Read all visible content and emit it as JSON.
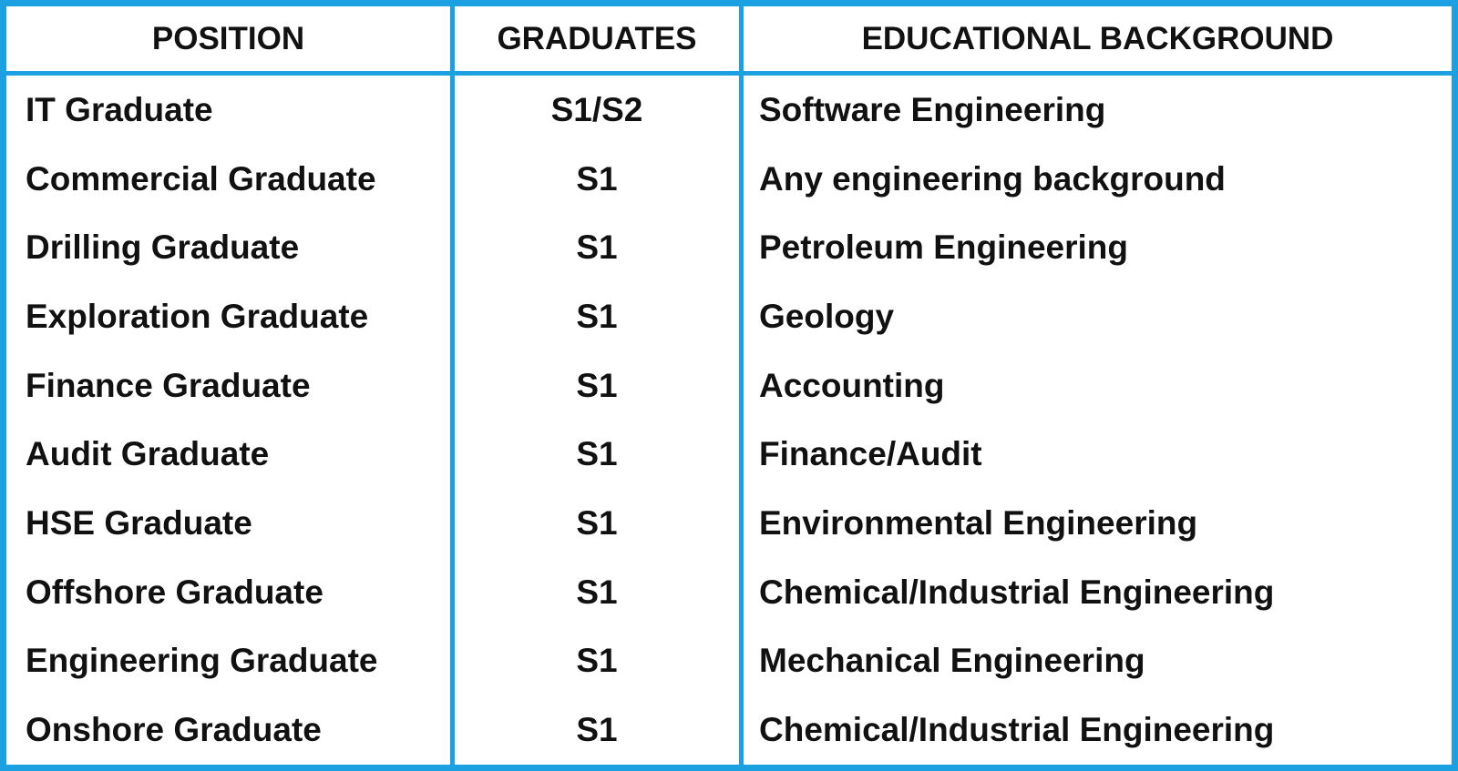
{
  "table": {
    "columns": [
      "POSITION",
      "GRADUATES",
      "EDUCATIONAL BACKGROUND"
    ],
    "rows": [
      [
        "IT Graduate",
        "S1/S2",
        "Software Engineering"
      ],
      [
        "Commercial Graduate",
        "S1",
        "Any engineering background"
      ],
      [
        "Drilling Graduate",
        "S1",
        "Petroleum Engineering"
      ],
      [
        "Exploration Graduate",
        "S1",
        "Geology"
      ],
      [
        "Finance Graduate",
        "S1",
        "Accounting"
      ],
      [
        "Audit Graduate",
        "S1",
        "Finance/Audit"
      ],
      [
        "HSE Graduate",
        "S1",
        "Environmental Engineering"
      ],
      [
        "Offshore Graduate",
        "S1",
        "Chemical/Industrial Engineering"
      ],
      [
        "Engineering Graduate",
        "S1",
        "Mechanical Engineering"
      ],
      [
        "Onshore Graduate",
        "S1",
        "Chemical/Industrial Engineering"
      ]
    ]
  }
}
